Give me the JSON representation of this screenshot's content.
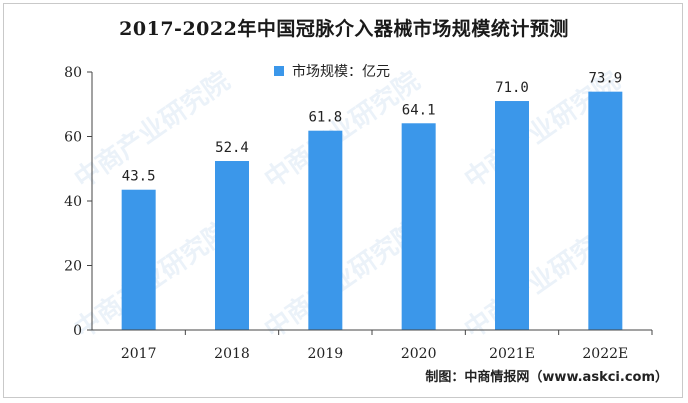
{
  "title": "2017-2022年中国冠脉介入器械市场规模统计预测",
  "source": "制图：中商情报网（www.askci.com）",
  "watermark": "中商产业研究院",
  "chart_data": {
    "type": "bar",
    "categories": [
      "2017",
      "2018",
      "2019",
      "2020",
      "2021E",
      "2022E"
    ],
    "series": [
      {
        "name": "市场规模：亿元",
        "values": [
          43.5,
          52.4,
          61.8,
          64.1,
          71.0,
          73.9
        ]
      }
    ],
    "data_labels": [
      "43.5",
      "52.4",
      "61.8",
      "64.1",
      "71.0",
      "73.9"
    ],
    "ylim": [
      0,
      80
    ],
    "yticks": [
      0,
      20,
      40,
      60,
      80
    ],
    "bar_color": "#3b97ea",
    "legend_position": "top",
    "grid": false
  }
}
